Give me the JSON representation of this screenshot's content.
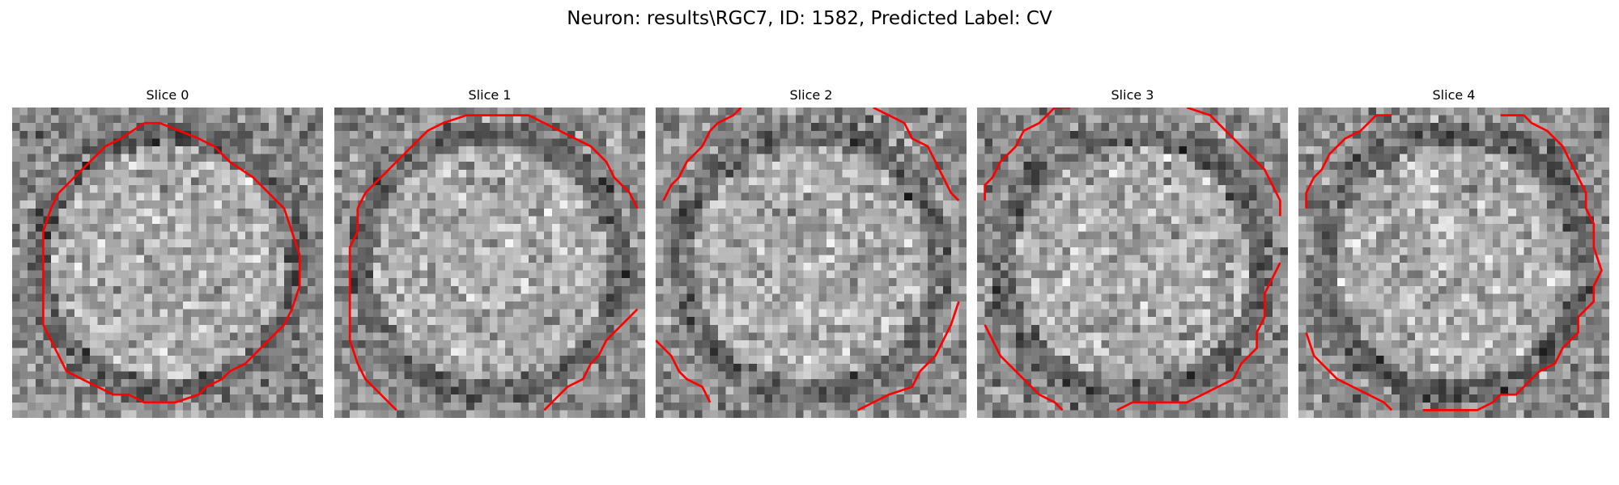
{
  "figure": {
    "title": "Neuron: results\\RGC7, ID: 1582, Predicted Label: CV"
  },
  "panels": [
    {
      "title": "Slice 0",
      "seed": 11,
      "contour_color": "#ff0000",
      "contours": [
        [
          [
            17,
            2
          ],
          [
            19,
            2
          ],
          [
            24,
            4
          ],
          [
            26,
            5
          ],
          [
            28,
            7
          ],
          [
            31,
            9
          ],
          [
            33,
            11
          ],
          [
            35,
            13
          ],
          [
            36,
            16
          ],
          [
            37,
            19
          ],
          [
            37,
            23
          ],
          [
            36,
            26
          ],
          [
            35,
            28
          ],
          [
            33,
            30
          ],
          [
            31,
            32
          ],
          [
            30,
            33
          ],
          [
            28,
            34
          ],
          [
            27,
            35
          ],
          [
            25,
            36
          ],
          [
            24,
            37
          ],
          [
            21,
            38
          ],
          [
            17,
            38
          ],
          [
            15,
            37
          ],
          [
            13,
            37
          ],
          [
            11,
            36
          ],
          [
            9,
            35
          ],
          [
            7,
            34
          ],
          [
            6,
            32
          ],
          [
            5,
            30
          ],
          [
            4,
            28
          ],
          [
            4,
            24
          ],
          [
            4,
            20
          ],
          [
            4,
            16
          ],
          [
            5,
            13
          ],
          [
            6,
            11
          ],
          [
            8,
            9
          ],
          [
            10,
            7
          ],
          [
            12,
            5
          ],
          [
            14,
            4
          ],
          [
            17,
            2
          ]
        ]
      ]
    },
    {
      "title": "Slice 1",
      "seed": 29,
      "contour_color": "#ff0000",
      "contours": [
        [
          [
            3,
            13
          ],
          [
            4,
            11
          ],
          [
            6,
            9
          ],
          [
            8,
            7
          ],
          [
            10,
            5
          ],
          [
            12,
            3
          ],
          [
            14,
            2
          ],
          [
            17,
            1
          ],
          [
            21,
            1
          ],
          [
            25,
            1
          ],
          [
            27,
            2
          ],
          [
            29,
            3
          ],
          [
            31,
            4
          ],
          [
            33,
            5
          ],
          [
            35,
            7
          ],
          [
            36,
            9
          ],
          [
            38,
            11
          ],
          [
            39,
            13
          ]
        ],
        [
          [
            39,
            26
          ],
          [
            37,
            28
          ],
          [
            35,
            30
          ],
          [
            34,
            32
          ],
          [
            33,
            33
          ],
          [
            32,
            35
          ],
          [
            30,
            36
          ],
          [
            28,
            38
          ],
          [
            27,
            39
          ]
        ],
        [
          [
            8,
            39
          ],
          [
            7,
            38
          ],
          [
            6,
            37
          ],
          [
            5,
            36
          ],
          [
            4,
            35
          ],
          [
            3,
            33
          ],
          [
            2,
            30
          ],
          [
            2,
            26
          ],
          [
            2,
            22
          ],
          [
            2,
            18
          ],
          [
            3,
            16
          ],
          [
            3,
            13
          ]
        ]
      ]
    },
    {
      "title": "Slice 2",
      "seed": 53,
      "contour_color": "#ff0000",
      "contours": [
        [
          [
            1,
            12
          ],
          [
            2,
            10
          ],
          [
            3,
            9
          ],
          [
            4,
            7
          ],
          [
            6,
            5
          ],
          [
            7,
            3
          ],
          [
            8,
            2
          ],
          [
            10,
            1
          ],
          [
            11,
            0
          ]
        ],
        [
          [
            28,
            0
          ],
          [
            30,
            1
          ],
          [
            32,
            2
          ],
          [
            33,
            4
          ],
          [
            35,
            5
          ],
          [
            36,
            7
          ],
          [
            37,
            9
          ],
          [
            38,
            11
          ],
          [
            39,
            12
          ]
        ],
        [
          [
            39,
            25
          ],
          [
            38,
            28
          ],
          [
            37,
            30
          ],
          [
            36,
            32
          ],
          [
            34,
            34
          ],
          [
            33,
            36
          ],
          [
            30,
            37
          ],
          [
            28,
            38
          ],
          [
            26,
            39
          ]
        ],
        [
          [
            0,
            30
          ],
          [
            2,
            32
          ],
          [
            3,
            34
          ],
          [
            4,
            35
          ],
          [
            6,
            36
          ],
          [
            7,
            38
          ]
        ]
      ]
    },
    {
      "title": "Slice 3",
      "seed": 71,
      "contour_color": "#ff0000",
      "contours": [
        [
          [
            1,
            12
          ],
          [
            1,
            10
          ],
          [
            2,
            9
          ],
          [
            3,
            7
          ],
          [
            5,
            5
          ],
          [
            6,
            3
          ],
          [
            8,
            2
          ],
          [
            10,
            0
          ],
          [
            12,
            0
          ]
        ],
        [
          [
            27,
            0
          ],
          [
            30,
            1
          ],
          [
            31,
            2
          ],
          [
            33,
            4
          ],
          [
            35,
            6
          ],
          [
            37,
            8
          ],
          [
            38,
            10
          ],
          [
            39,
            12
          ],
          [
            39,
            14
          ]
        ],
        [
          [
            39,
            20
          ],
          [
            38,
            22
          ],
          [
            37,
            24
          ],
          [
            37,
            27
          ],
          [
            36,
            29
          ],
          [
            36,
            31
          ],
          [
            34,
            33
          ],
          [
            33,
            35
          ],
          [
            31,
            36
          ],
          [
            29,
            37
          ],
          [
            27,
            38
          ],
          [
            25,
            38
          ],
          [
            22,
            38
          ],
          [
            20,
            38
          ],
          [
            18,
            39
          ]
        ],
        [
          [
            11,
            39
          ],
          [
            10,
            38
          ],
          [
            8,
            37
          ],
          [
            7,
            36
          ],
          [
            5,
            34
          ],
          [
            3,
            32
          ],
          [
            2,
            30
          ],
          [
            1,
            28
          ]
        ]
      ]
    },
    {
      "title": "Slice 4",
      "seed": 97,
      "contour_color": "#ff0000",
      "contours": [
        [
          [
            1,
            13
          ],
          [
            1,
            11
          ],
          [
            2,
            9
          ],
          [
            3,
            8
          ],
          [
            4,
            6
          ],
          [
            6,
            4
          ],
          [
            8,
            3
          ],
          [
            9,
            2
          ],
          [
            10,
            1
          ],
          [
            12,
            1
          ]
        ],
        [
          [
            26,
            1
          ],
          [
            29,
            1
          ],
          [
            30,
            2
          ],
          [
            32,
            3
          ],
          [
            34,
            5
          ],
          [
            35,
            7
          ],
          [
            36,
            9
          ],
          [
            37,
            11
          ],
          [
            37,
            13
          ],
          [
            38,
            15
          ],
          [
            38,
            18
          ],
          [
            39,
            21
          ],
          [
            38,
            23
          ],
          [
            38,
            25
          ],
          [
            36,
            27
          ],
          [
            36,
            29
          ],
          [
            34,
            31
          ],
          [
            33,
            33
          ],
          [
            31,
            34
          ],
          [
            29,
            36
          ],
          [
            28,
            37
          ],
          [
            26,
            37
          ],
          [
            25,
            38
          ],
          [
            23,
            39
          ],
          [
            21,
            39
          ],
          [
            18,
            39
          ],
          [
            16,
            39
          ]
        ],
        [
          [
            12,
            39
          ],
          [
            11,
            38
          ],
          [
            9,
            37
          ],
          [
            7,
            36
          ],
          [
            5,
            35
          ],
          [
            3,
            33
          ],
          [
            2,
            32
          ],
          [
            1,
            29
          ]
        ]
      ]
    }
  ]
}
